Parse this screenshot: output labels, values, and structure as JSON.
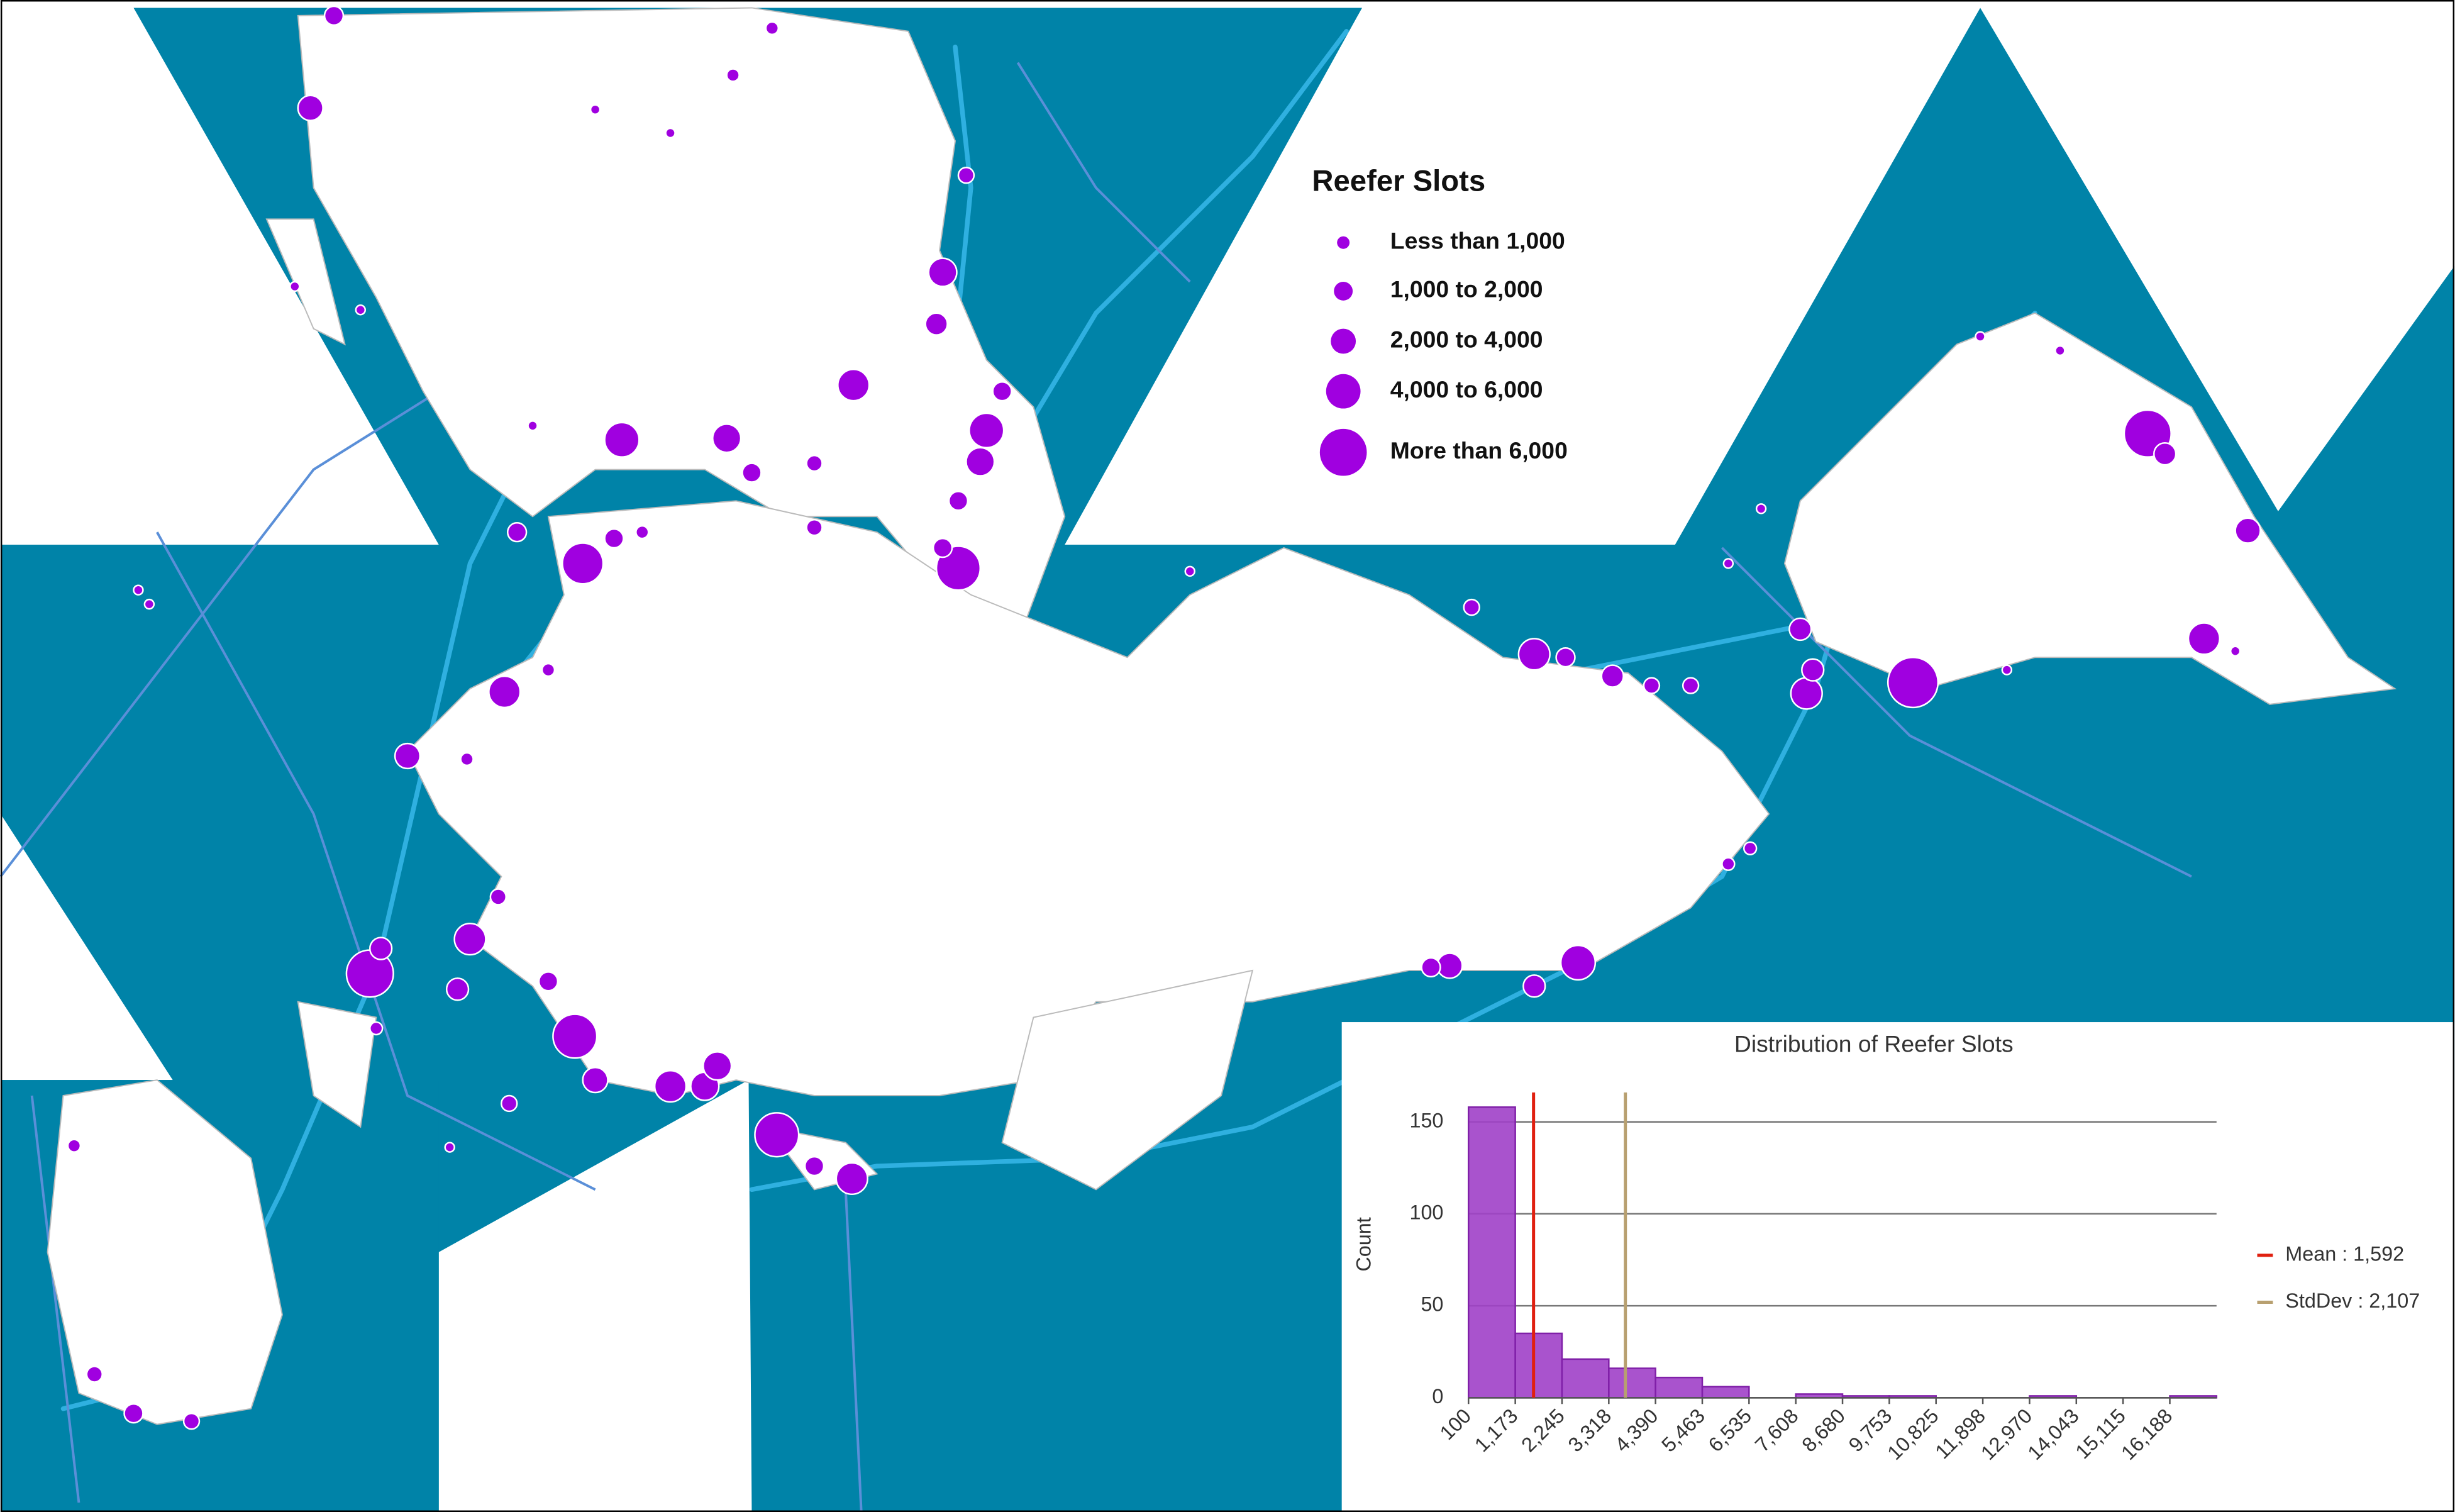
{
  "legend": {
    "title": "Reefer Slots",
    "items": [
      "Less than 1,000",
      "1,000 to 2,000",
      "2,000 to 4,000",
      "4,000 to 6,000",
      "More than 6,000"
    ]
  },
  "chart_data": {
    "type": "histogram",
    "title": "Distribution of Reefer Slots",
    "y_label": "Count",
    "bins": [
      100,
      1173,
      2245,
      3318,
      4390,
      5463,
      6535,
      7608,
      8680,
      9753,
      10825,
      11898,
      12970,
      14043,
      15115,
      16188,
      17260
    ],
    "values": [
      158,
      35,
      21,
      16,
      11,
      6,
      0,
      2,
      1,
      1,
      0,
      0,
      1,
      0,
      0,
      1
    ],
    "color": "#a040c8",
    "xlim": [
      100,
      17260
    ],
    "xticks": [
      100,
      {
        "value": 1173,
        "label": "1,173"
      },
      {
        "value": 2245,
        "label": "2,245"
      },
      {
        "value": 3318,
        "label": "3,318"
      },
      {
        "value": 4390,
        "label": "4,390"
      },
      {
        "value": 5463,
        "label": "5,463"
      },
      {
        "value": 6535,
        "label": "6,535"
      },
      {
        "value": 7608,
        "label": "7,608"
      },
      {
        "value": 8680,
        "label": "8,680"
      },
      {
        "value": 9753,
        "label": "9,753"
      },
      {
        "value": 10825,
        "label": "10,825"
      },
      {
        "value": 11898,
        "label": "11,898"
      },
      {
        "value": 12970,
        "label": "12,970"
      },
      {
        "value": 14043,
        "label": "14,043"
      },
      {
        "value": 15115,
        "label": "15,115"
      },
      {
        "value": 16188,
        "label": "16,188"
      }
    ],
    "ylim": [
      0,
      160
    ],
    "yticks": [
      0,
      50,
      100,
      150
    ],
    "grid": true,
    "mean": {
      "value": 1592,
      "label": "Mean : 1,592",
      "color": "#e02010"
    },
    "stddev": {
      "value": 2107,
      "label": "StdDev : 2,107",
      "color": "#b8a070"
    }
  }
}
